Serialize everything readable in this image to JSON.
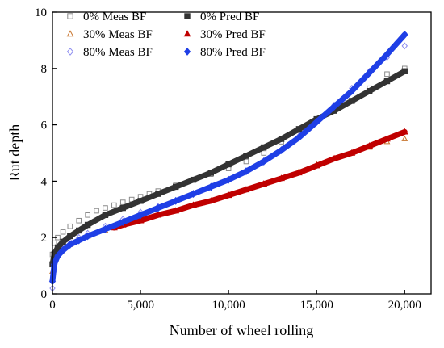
{
  "chart_data": {
    "type": "scatter",
    "xlabel": "Number of wheel rolling",
    "ylabel": "Rut depth",
    "xlim": [
      0,
      21500
    ],
    "ylim": [
      0,
      10
    ],
    "x_ticks": [
      0,
      5000,
      10000,
      15000,
      20000
    ],
    "x_tick_labels": [
      "0",
      "5,000",
      "10,000",
      "15,000",
      "20,000"
    ],
    "y_ticks": [
      0,
      2,
      4,
      6,
      8,
      10
    ],
    "y_tick_labels": [
      "0",
      "2",
      "4",
      "6",
      "8",
      "10"
    ],
    "legend_position": "top-left",
    "series": [
      {
        "name": "0% Meas BF",
        "kind": "measured",
        "marker": "open-square",
        "color": "#8a8a8a",
        "x": [
          0,
          100,
          300,
          600,
          1000,
          1500,
          2000,
          2500,
          3000,
          3500,
          4000,
          4500,
          5000,
          5500,
          6000,
          7000,
          8000,
          9000,
          10000,
          11000,
          12000,
          13000,
          14000,
          15000,
          16000,
          17000,
          18000,
          19000,
          20000
        ],
        "y": [
          1.4,
          1.8,
          2.0,
          2.2,
          2.4,
          2.6,
          2.8,
          2.95,
          3.05,
          3.15,
          3.25,
          3.35,
          3.45,
          3.55,
          3.65,
          3.85,
          4.05,
          4.25,
          4.45,
          4.7,
          5.0,
          5.4,
          5.8,
          6.15,
          6.5,
          6.85,
          7.3,
          7.8,
          8.0
        ]
      },
      {
        "name": "0% Pred BF",
        "kind": "predicted",
        "marker": "filled-square",
        "color": "#333333",
        "x": [
          0,
          100,
          300,
          600,
          1000,
          1500,
          2000,
          3000,
          4000,
          5000,
          6000,
          7000,
          8000,
          9000,
          10000,
          11000,
          12000,
          13000,
          14000,
          15000,
          16000,
          17000,
          18000,
          19000,
          20000
        ],
        "y": [
          1.05,
          1.4,
          1.65,
          1.85,
          2.05,
          2.25,
          2.45,
          2.8,
          3.05,
          3.3,
          3.55,
          3.8,
          4.05,
          4.3,
          4.6,
          4.9,
          5.2,
          5.5,
          5.85,
          6.2,
          6.5,
          6.85,
          7.2,
          7.55,
          7.9
        ]
      },
      {
        "name": "30% Meas BF",
        "kind": "measured",
        "marker": "open-triangle",
        "color": "#c8742c",
        "x": [
          0,
          200,
          500,
          1000,
          2000,
          3000,
          4000,
          5000,
          6000,
          7000,
          8000,
          9000,
          10000,
          11000,
          12000,
          13000,
          14000,
          15000,
          16000,
          17000,
          18000,
          19000,
          20000
        ],
        "y": [
          0.8,
          1.2,
          1.5,
          1.75,
          2.05,
          2.25,
          2.45,
          2.6,
          2.8,
          2.95,
          3.15,
          3.3,
          3.5,
          3.7,
          3.9,
          4.1,
          4.35,
          4.6,
          4.8,
          5.0,
          5.2,
          5.4,
          5.5
        ]
      },
      {
        "name": "30% Pred BF",
        "kind": "predicted",
        "marker": "filled-triangle",
        "color": "#c00000",
        "x": [
          3500,
          4000,
          5000,
          6000,
          7000,
          8000,
          9000,
          10000,
          11000,
          12000,
          13000,
          14000,
          15000,
          16000,
          17000,
          18000,
          19000,
          20000
        ],
        "y": [
          2.35,
          2.45,
          2.6,
          2.8,
          2.95,
          3.15,
          3.3,
          3.5,
          3.7,
          3.9,
          4.1,
          4.3,
          4.55,
          4.8,
          5.0,
          5.25,
          5.5,
          5.75
        ]
      },
      {
        "name": "80% Meas BF",
        "kind": "measured",
        "marker": "open-diamond",
        "color": "#8c8cf0",
        "x": [
          0,
          100,
          300,
          600,
          1000,
          1500,
          2000,
          3000,
          4000,
          5000,
          6000,
          7000,
          8000,
          9000,
          10000,
          11000,
          12000,
          13000,
          14000,
          15000,
          16000,
          17000,
          18000,
          19000,
          20000
        ],
        "y": [
          0.2,
          0.8,
          1.3,
          1.6,
          1.85,
          2.0,
          2.15,
          2.4,
          2.65,
          2.9,
          3.1,
          3.3,
          3.55,
          3.8,
          4.05,
          4.35,
          4.7,
          5.1,
          5.6,
          6.1,
          6.7,
          7.3,
          7.9,
          8.4,
          8.8
        ]
      },
      {
        "name": "80% Pred BF",
        "kind": "predicted",
        "marker": "filled-diamond",
        "color": "#1f3fe6",
        "x": [
          0,
          100,
          300,
          600,
          1000,
          1500,
          2000,
          3000,
          4000,
          5000,
          6000,
          7000,
          8000,
          9000,
          10000,
          11000,
          12000,
          13000,
          14000,
          15000,
          16000,
          17000,
          18000,
          19000,
          20000
        ],
        "y": [
          0.45,
          1.05,
          1.35,
          1.55,
          1.75,
          1.9,
          2.05,
          2.3,
          2.55,
          2.8,
          3.05,
          3.3,
          3.55,
          3.8,
          4.05,
          4.35,
          4.7,
          5.1,
          5.55,
          6.1,
          6.65,
          7.2,
          7.85,
          8.5,
          9.2
        ]
      }
    ]
  }
}
